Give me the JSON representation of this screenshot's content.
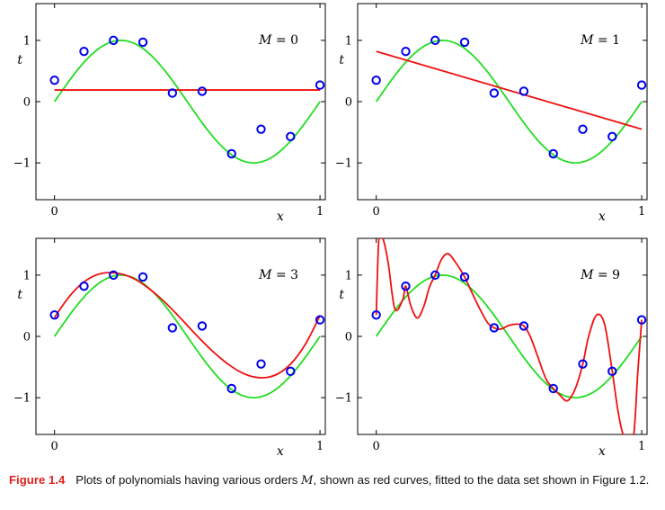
{
  "colors": {
    "true_curve": "#22dd22",
    "fit_curve": "#ee1111",
    "data_points": "#0000ee",
    "caption_number": "#e02020"
  },
  "caption": {
    "number": "Figure 1.4",
    "text_before": "Plots of polynomials having various orders ",
    "variable": "M",
    "text_after": ", shown as red curves, fitted to the data set shown in Figure 1.2."
  },
  "chart_data": [
    {
      "type": "line",
      "panel_label": "M = 0",
      "xlabel": "x",
      "ylabel": "t",
      "xlim": [
        -0.07,
        1.02
      ],
      "ylim": [
        -1.6,
        1.6
      ],
      "x_ticks": [
        0,
        1
      ],
      "y_ticks": [
        -1,
        0,
        1
      ],
      "grid": false,
      "series": [
        {
          "role": "data",
          "marker": "circle",
          "x": [
            0,
            0.111,
            0.222,
            0.333,
            0.444,
            0.556,
            0.667,
            0.778,
            0.889,
            1.0
          ],
          "y": [
            0.35,
            0.82,
            1.0,
            0.97,
            0.14,
            0.17,
            -0.85,
            -0.45,
            -0.57,
            0.27
          ]
        },
        {
          "role": "true",
          "function": "sin(2*pi*x)"
        },
        {
          "role": "fit",
          "x": [
            0,
            1
          ],
          "y": [
            0.19,
            0.19
          ]
        }
      ]
    },
    {
      "type": "line",
      "panel_label": "M = 1",
      "xlabel": "x",
      "ylabel": "t",
      "xlim": [
        -0.07,
        1.02
      ],
      "ylim": [
        -1.6,
        1.6
      ],
      "x_ticks": [
        0,
        1
      ],
      "y_ticks": [
        -1,
        0,
        1
      ],
      "grid": false,
      "series": [
        {
          "role": "data",
          "marker": "circle",
          "x": [
            0,
            0.111,
            0.222,
            0.333,
            0.444,
            0.556,
            0.667,
            0.778,
            0.889,
            1.0
          ],
          "y": [
            0.35,
            0.82,
            1.0,
            0.97,
            0.14,
            0.17,
            -0.85,
            -0.45,
            -0.57,
            0.27
          ]
        },
        {
          "role": "true",
          "function": "sin(2*pi*x)"
        },
        {
          "role": "fit",
          "x": [
            0,
            1
          ],
          "y": [
            0.82,
            -0.45
          ]
        }
      ]
    },
    {
      "type": "line",
      "panel_label": "M = 3",
      "xlabel": "x",
      "ylabel": "t",
      "xlim": [
        -0.07,
        1.02
      ],
      "ylim": [
        -1.6,
        1.6
      ],
      "x_ticks": [
        0,
        1
      ],
      "y_ticks": [
        -1,
        0,
        1
      ],
      "grid": false,
      "series": [
        {
          "role": "data",
          "marker": "circle",
          "x": [
            0,
            0.111,
            0.222,
            0.333,
            0.444,
            0.556,
            0.667,
            0.778,
            0.889,
            1.0
          ],
          "y": [
            0.35,
            0.82,
            1.0,
            0.97,
            0.14,
            0.17,
            -0.85,
            -0.45,
            -0.57,
            0.27
          ]
        },
        {
          "role": "true",
          "function": "sin(2*pi*x)"
        },
        {
          "role": "fit",
          "x": [
            0,
            0.05,
            0.1,
            0.15,
            0.2,
            0.25,
            0.3,
            0.35,
            0.4,
            0.45,
            0.5,
            0.55,
            0.6,
            0.65,
            0.7,
            0.75,
            0.8,
            0.85,
            0.9,
            0.95,
            1.0
          ],
          "y": [
            0.31,
            0.62,
            0.85,
            0.99,
            1.04,
            1.02,
            0.94,
            0.8,
            0.62,
            0.41,
            0.18,
            -0.05,
            -0.26,
            -0.44,
            -0.58,
            -0.66,
            -0.67,
            -0.59,
            -0.4,
            -0.09,
            0.34
          ]
        }
      ]
    },
    {
      "type": "line",
      "panel_label": "M = 9",
      "xlabel": "x",
      "ylabel": "t",
      "xlim": [
        -0.07,
        1.02
      ],
      "ylim": [
        -1.6,
        1.6
      ],
      "x_ticks": [
        0,
        1
      ],
      "y_ticks": [
        -1,
        0,
        1
      ],
      "grid": false,
      "series": [
        {
          "role": "data",
          "marker": "circle",
          "x": [
            0,
            0.111,
            0.222,
            0.333,
            0.444,
            0.556,
            0.667,
            0.778,
            0.889,
            1.0
          ],
          "y": [
            0.35,
            0.82,
            1.0,
            0.97,
            0.14,
            0.17,
            -0.85,
            -0.45,
            -0.57,
            0.27
          ]
        },
        {
          "role": "true",
          "function": "sin(2*pi*x)"
        },
        {
          "role": "fit",
          "x": [
            0,
            0.01,
            0.025,
            0.045,
            0.07,
            0.1,
            0.111,
            0.13,
            0.155,
            0.18,
            0.2,
            0.222,
            0.245,
            0.27,
            0.3,
            0.333,
            0.36,
            0.39,
            0.42,
            0.444,
            0.47,
            0.5,
            0.53,
            0.556,
            0.58,
            0.61,
            0.64,
            0.667,
            0.69,
            0.72,
            0.75,
            0.778,
            0.8,
            0.83,
            0.86,
            0.889,
            0.91,
            0.93,
            0.95,
            0.97,
            0.985,
            1.0
          ],
          "y": [
            0.35,
            1.6,
            1.6,
            1.2,
            0.45,
            0.6,
            0.82,
            0.5,
            0.3,
            0.5,
            0.8,
            1.0,
            1.25,
            1.35,
            1.2,
            0.97,
            0.72,
            0.45,
            0.22,
            0.14,
            0.12,
            0.18,
            0.2,
            0.17,
            0.0,
            -0.35,
            -0.7,
            -0.85,
            -0.95,
            -1.05,
            -0.85,
            -0.45,
            0.0,
            0.35,
            0.2,
            -0.57,
            -1.2,
            -1.6,
            -1.6,
            -1.6,
            -0.6,
            0.27
          ]
        }
      ]
    }
  ]
}
